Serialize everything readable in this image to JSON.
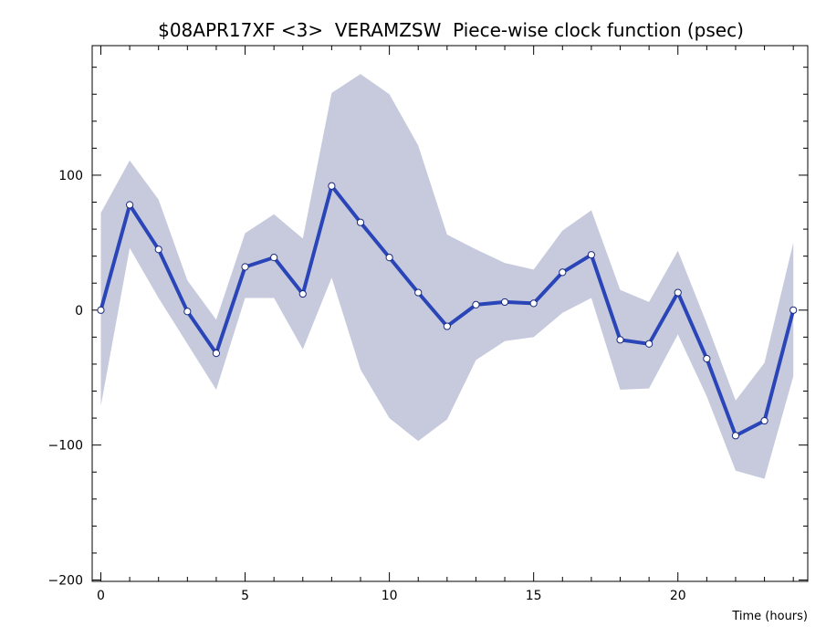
{
  "chart_data": {
    "type": "line",
    "title": "$08APR17XF <3>  VERAMZSW  Piece-wise clock function (psec)",
    "xlabel": "Time (hours)",
    "ylabel": "",
    "xlim": [
      -0.3,
      24.5
    ],
    "ylim": [
      -201,
      196
    ],
    "x_ticks": [
      0,
      5,
      10,
      15,
      20
    ],
    "y_ticks": [
      -200,
      -100,
      0,
      100
    ],
    "grid": false,
    "legend": "none",
    "series": [
      {
        "role": "clock-function",
        "color": "#2a45b8",
        "x": [
          0,
          1,
          2,
          3,
          4,
          5,
          6,
          7,
          8,
          9,
          10,
          11,
          12,
          13,
          14,
          15,
          16,
          17,
          18,
          19,
          20,
          21,
          22,
          23,
          24
        ],
        "values": [
          0,
          78,
          45,
          -1,
          -32,
          32,
          39,
          12,
          92,
          65,
          39,
          13,
          -12,
          4,
          6,
          5,
          28,
          41,
          -22,
          -25,
          13,
          -36,
          -93,
          -82,
          0
        ]
      }
    ],
    "error_band": {
      "color": "#c6cadc",
      "x": [
        0,
        1,
        2,
        3,
        4,
        5,
        6,
        7,
        8,
        9,
        10,
        11,
        12,
        13,
        14,
        15,
        16,
        17,
        18,
        19,
        20,
        21,
        22,
        23,
        24
      ],
      "upper": [
        72,
        111,
        82,
        22,
        -7,
        57,
        71,
        53,
        161,
        175,
        160,
        122,
        56,
        45,
        35,
        30,
        59,
        74,
        15,
        6,
        44,
        -10,
        -67,
        -39,
        50
      ],
      "lower": [
        -71,
        46,
        9,
        -25,
        -59,
        9,
        9,
        -29,
        24,
        -44,
        -80,
        -97,
        -81,
        -37,
        -23,
        -20,
        -2,
        9,
        -59,
        -58,
        -18,
        -64,
        -119,
        -125,
        -49
      ]
    }
  }
}
